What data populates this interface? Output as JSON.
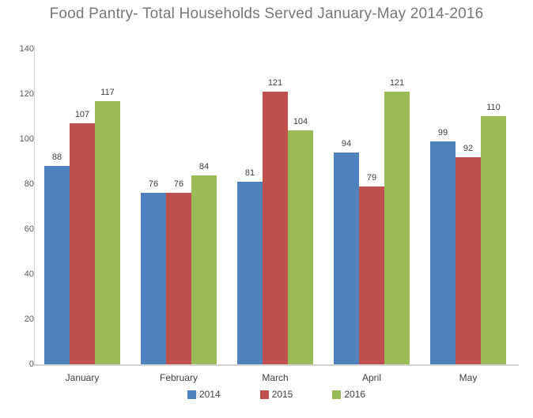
{
  "chart_data": {
    "type": "bar",
    "title": "Food Pantry- Total Households Served January-May 2014-2016",
    "categories": [
      "January",
      "February",
      "March",
      "April",
      "May"
    ],
    "series": [
      {
        "name": "2014",
        "color": "#4f81bd",
        "values": [
          88,
          76,
          81,
          94,
          99
        ]
      },
      {
        "name": "2015",
        "color": "#c0504d",
        "values": [
          107,
          76,
          121,
          79,
          92
        ]
      },
      {
        "name": "2016",
        "color": "#9bbb59",
        "values": [
          117,
          84,
          104,
          121,
          110
        ]
      }
    ],
    "xlabel": "",
    "ylabel": "",
    "ylim": [
      0,
      140
    ],
    "yticks": [
      0,
      20,
      40,
      60,
      80,
      100,
      120,
      140
    ],
    "grid": false,
    "legend_position": "bottom",
    "data_labels": true,
    "colors": {
      "title_text": "#76777b",
      "axis_line": "#d2d2d2",
      "tick_text": "#595959",
      "label_text": "#3f3f3f"
    }
  }
}
